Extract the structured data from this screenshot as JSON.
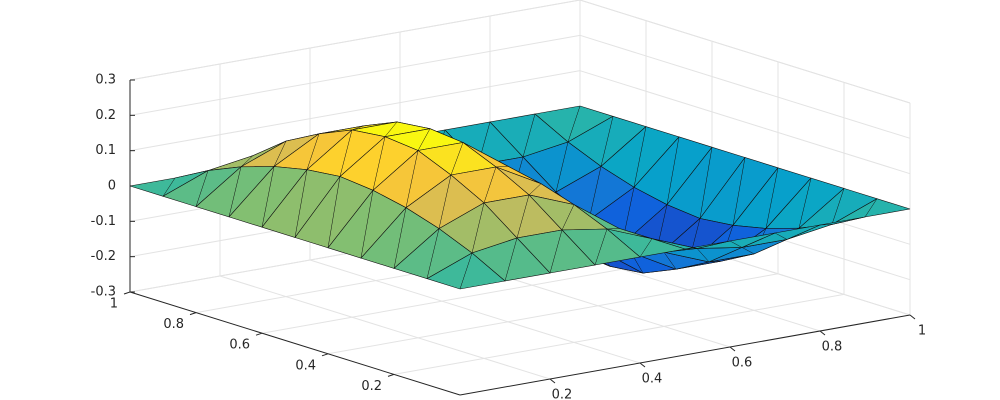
{
  "chart_data": {
    "type": "surface",
    "colormap": "parula",
    "grid": true,
    "x": [
      0,
      0.1,
      0.2,
      0.3,
      0.4,
      0.5,
      0.6,
      0.7,
      0.8,
      0.9,
      1
    ],
    "y": [
      0,
      0.1,
      0.2,
      0.3,
      0.4,
      0.5,
      0.6,
      0.7,
      0.8,
      0.9,
      1
    ],
    "z": [
      [
        0,
        0,
        0,
        0,
        0,
        0,
        0,
        0,
        0,
        0,
        0
      ],
      [
        0,
        0.05,
        0.07,
        0.07,
        0.05,
        0,
        -0.05,
        -0.07,
        -0.07,
        -0.05,
        0
      ],
      [
        0,
        0.09,
        0.14,
        0.14,
        0.09,
        0,
        -0.09,
        -0.14,
        -0.14,
        -0.09,
        0
      ],
      [
        0,
        0.12,
        0.19,
        0.19,
        0.12,
        0,
        -0.12,
        -0.19,
        -0.19,
        -0.12,
        0
      ],
      [
        0,
        0.14,
        0.23,
        0.23,
        0.14,
        0,
        -0.14,
        -0.23,
        -0.23,
        -0.14,
        0
      ],
      [
        0,
        0.15,
        0.24,
        0.24,
        0.15,
        0,
        -0.15,
        -0.24,
        -0.24,
        -0.15,
        0
      ],
      [
        0,
        0.14,
        0.23,
        0.23,
        0.14,
        0,
        -0.14,
        -0.23,
        -0.23,
        -0.14,
        0
      ],
      [
        0,
        0.12,
        0.19,
        0.19,
        0.12,
        0,
        -0.12,
        -0.19,
        -0.19,
        -0.12,
        0
      ],
      [
        0,
        0.09,
        0.14,
        0.14,
        0.09,
        0,
        -0.09,
        -0.14,
        -0.14,
        -0.09,
        0
      ],
      [
        0,
        0.05,
        0.07,
        0.07,
        0.05,
        0,
        -0.05,
        -0.07,
        -0.07,
        -0.05,
        0
      ],
      [
        0,
        0,
        0,
        0,
        0,
        0,
        0,
        0,
        0,
        0,
        0
      ]
    ],
    "xlim": [
      0,
      1
    ],
    "ylim": [
      0,
      1
    ],
    "zlim": [
      -0.3,
      0.3
    ],
    "xticks": [
      0.2,
      0.4,
      0.6,
      0.8,
      1
    ],
    "yticks": [
      0.2,
      0.4,
      0.6,
      0.8,
      1
    ],
    "zticks": [
      -0.3,
      -0.2,
      -0.1,
      0,
      0.1,
      0.2,
      0.3
    ]
  }
}
